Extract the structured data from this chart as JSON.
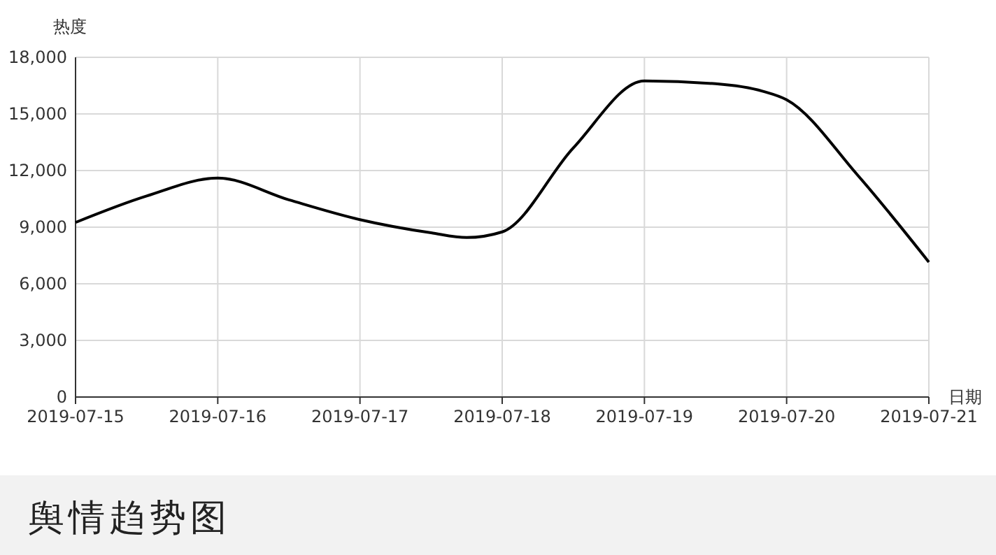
{
  "chart_data": {
    "type": "line",
    "title": "舆情趋势图",
    "xlabel": "日期",
    "ylabel": "热度",
    "x": [
      "2019-07-15",
      "2019-07-15T12:00",
      "2019-07-16",
      "2019-07-16T12:00",
      "2019-07-17",
      "2019-07-17T12:00",
      "2019-07-17T18:00",
      "2019-07-18",
      "2019-07-18T12:00",
      "2019-07-19",
      "2019-07-19T12:00",
      "2019-07-19T20:00",
      "2019-07-20",
      "2019-07-20T12:00",
      "2019-07-21"
    ],
    "series": [
      {
        "color": "#000000",
        "values": [
          9250,
          10650,
          11600,
          10450,
          9400,
          8700,
          8450,
          8750,
          13200,
          16750,
          16600,
          16200,
          15750,
          11750,
          7150
        ]
      }
    ],
    "xlim": [
      "2019-07-15",
      "2019-07-21"
    ],
    "xticks": [
      {
        "value": "2019-07-15",
        "label": "2019-07-15"
      },
      {
        "value": "2019-07-16",
        "label": "2019-07-16"
      },
      {
        "value": "2019-07-17",
        "label": "2019-07-17"
      },
      {
        "value": "2019-07-18",
        "label": "2019-07-18"
      },
      {
        "value": "2019-07-19",
        "label": "2019-07-19"
      },
      {
        "value": "2019-07-20",
        "label": "2019-07-20"
      },
      {
        "value": "2019-07-21",
        "label": "2019-07-21"
      }
    ],
    "ylim": [
      0,
      18000
    ],
    "yticks": [
      0,
      {
        "value": 3000,
        "label": "3,000"
      },
      {
        "value": 6000,
        "label": "6,000"
      },
      {
        "value": 9000,
        "label": "9,000"
      },
      {
        "value": 12000,
        "label": "12,000"
      },
      {
        "value": 15000,
        "label": "15,000"
      },
      {
        "value": 18000,
        "label": "18,000"
      }
    ],
    "grid": true,
    "marker": "none",
    "line_style": "solid"
  }
}
